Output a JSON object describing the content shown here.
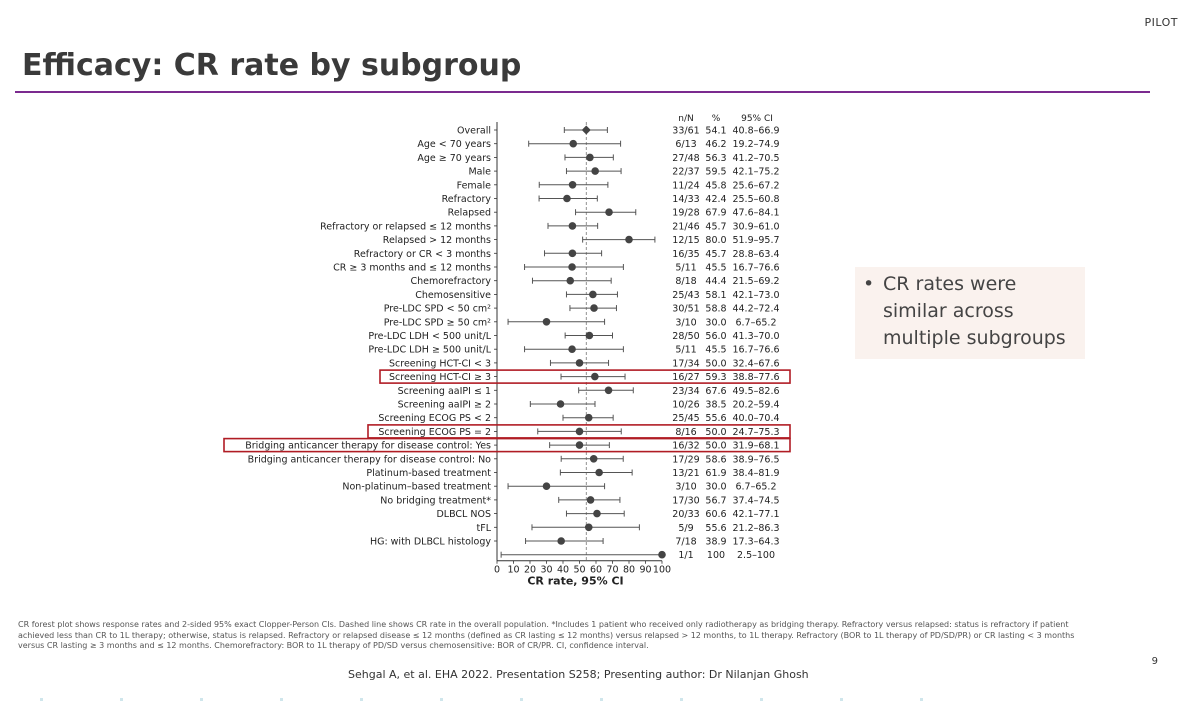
{
  "header": {
    "brand": "PILOT",
    "title": "Efficacy: CR rate by subgroup"
  },
  "table_headers": {
    "nn": "n/N",
    "pct": "%",
    "ci": "95% CI"
  },
  "bullet": {
    "text": "CR rates were similar across multiple subgroups"
  },
  "footnote": "CR forest plot shows response rates and 2-sided 95% exact Clopper-Person CIs. Dashed line shows CR rate in the overall population. *Includes 1 patient who received only radiotherapy as bridging therapy. Refractory versus relapsed: status is refractory if patient achieved less than CR to 1L therapy; otherwise, status is relapsed. Refractory or relapsed disease ≤ 12 months (defined as CR lasting ≤ 12 months) versus relapsed > 12 months, to 1L therapy. Refractory (BOR to 1L therapy of PD/SD/PR) or CR lasting < 3 months versus CR lasting ≥ 3 months and ≤ 12 months. Chemorefractory: BOR to 1L therapy of PD/SD versus chemosensitive: BOR of CR/PR. CI, confidence interval.",
  "citation": "Sehgal A, et al. EHA 2022. Presentation S258; Presenting author: Dr Nilanjan Ghosh",
  "page_number": "9",
  "chart_data": {
    "type": "forest",
    "xlabel": "CR rate, 95% CI",
    "xlim": [
      0,
      100
    ],
    "xticks": [
      0,
      10,
      20,
      30,
      40,
      50,
      60,
      70,
      80,
      90,
      100
    ],
    "reference_line": 54.1,
    "marker_color": "#444444",
    "highlight_color": "#b01c24",
    "rows": [
      {
        "label": "Overall",
        "nn": "33/61",
        "pct": 54.1,
        "lo": 40.8,
        "hi": 66.9,
        "pct_text": "54.1",
        "ci_text": "40.8–66.9",
        "highlight": false
      },
      {
        "label": "Age < 70 years",
        "nn": "6/13",
        "pct": 46.2,
        "lo": 19.2,
        "hi": 74.9,
        "pct_text": "46.2",
        "ci_text": "19.2–74.9",
        "highlight": false
      },
      {
        "label": "Age ≥ 70 years",
        "nn": "27/48",
        "pct": 56.3,
        "lo": 41.2,
        "hi": 70.5,
        "pct_text": "56.3",
        "ci_text": "41.2–70.5",
        "highlight": false
      },
      {
        "label": "Male",
        "nn": "22/37",
        "pct": 59.5,
        "lo": 42.1,
        "hi": 75.2,
        "pct_text": "59.5",
        "ci_text": "42.1–75.2",
        "highlight": false
      },
      {
        "label": "Female",
        "nn": "11/24",
        "pct": 45.8,
        "lo": 25.6,
        "hi": 67.2,
        "pct_text": "45.8",
        "ci_text": "25.6–67.2",
        "highlight": false
      },
      {
        "label": "Refractory",
        "nn": "14/33",
        "pct": 42.4,
        "lo": 25.5,
        "hi": 60.8,
        "pct_text": "42.4",
        "ci_text": "25.5–60.8",
        "highlight": false
      },
      {
        "label": "Relapsed",
        "nn": "19/28",
        "pct": 67.9,
        "lo": 47.6,
        "hi": 84.1,
        "pct_text": "67.9",
        "ci_text": "47.6–84.1",
        "highlight": false
      },
      {
        "label": "Refractory or relapsed ≤ 12 months",
        "nn": "21/46",
        "pct": 45.7,
        "lo": 30.9,
        "hi": 61.0,
        "pct_text": "45.7",
        "ci_text": "30.9–61.0",
        "highlight": false
      },
      {
        "label": "Relapsed > 12 months",
        "nn": "12/15",
        "pct": 80.0,
        "lo": 51.9,
        "hi": 95.7,
        "pct_text": "80.0",
        "ci_text": "51.9–95.7",
        "highlight": false
      },
      {
        "label": "Refractory or CR < 3 months",
        "nn": "16/35",
        "pct": 45.7,
        "lo": 28.8,
        "hi": 63.4,
        "pct_text": "45.7",
        "ci_text": "28.8–63.4",
        "highlight": false
      },
      {
        "label": "CR ≥ 3 months and ≤ 12 months",
        "nn": "5/11",
        "pct": 45.5,
        "lo": 16.7,
        "hi": 76.6,
        "pct_text": "45.5",
        "ci_text": "16.7–76.6",
        "highlight": false
      },
      {
        "label": "Chemorefractory",
        "nn": "8/18",
        "pct": 44.4,
        "lo": 21.5,
        "hi": 69.2,
        "pct_text": "44.4",
        "ci_text": "21.5–69.2",
        "highlight": false
      },
      {
        "label": "Chemosensitive",
        "nn": "25/43",
        "pct": 58.1,
        "lo": 42.1,
        "hi": 73.0,
        "pct_text": "58.1",
        "ci_text": "42.1–73.0",
        "highlight": false
      },
      {
        "label": "Pre-LDC SPD < 50 cm²",
        "nn": "30/51",
        "pct": 58.8,
        "lo": 44.2,
        "hi": 72.4,
        "pct_text": "58.8",
        "ci_text": "44.2–72.4",
        "highlight": false
      },
      {
        "label": "Pre-LDC SPD ≥ 50 cm²",
        "nn": "3/10",
        "pct": 30.0,
        "lo": 6.7,
        "hi": 65.2,
        "pct_text": "30.0",
        "ci_text": "6.7–65.2",
        "highlight": false
      },
      {
        "label": "Pre-LDC LDH < 500 unit/L",
        "nn": "28/50",
        "pct": 56.0,
        "lo": 41.3,
        "hi": 70.0,
        "pct_text": "56.0",
        "ci_text": "41.3–70.0",
        "highlight": false
      },
      {
        "label": "Pre-LDC LDH ≥ 500 unit/L",
        "nn": "5/11",
        "pct": 45.5,
        "lo": 16.7,
        "hi": 76.6,
        "pct_text": "45.5",
        "ci_text": "16.7–76.6",
        "highlight": false
      },
      {
        "label": "Screening HCT-CI < 3",
        "nn": "17/34",
        "pct": 50.0,
        "lo": 32.4,
        "hi": 67.6,
        "pct_text": "50.0",
        "ci_text": "32.4–67.6",
        "highlight": false
      },
      {
        "label": "Screening HCT-CI ≥ 3",
        "nn": "16/27",
        "pct": 59.3,
        "lo": 38.8,
        "hi": 77.6,
        "pct_text": "59.3",
        "ci_text": "38.8–77.6",
        "highlight": true
      },
      {
        "label": "Screening aaIPI ≤ 1",
        "nn": "23/34",
        "pct": 67.6,
        "lo": 49.5,
        "hi": 82.6,
        "pct_text": "67.6",
        "ci_text": "49.5–82.6",
        "highlight": false
      },
      {
        "label": "Screening aaIPI ≥ 2",
        "nn": "10/26",
        "pct": 38.5,
        "lo": 20.2,
        "hi": 59.4,
        "pct_text": "38.5",
        "ci_text": "20.2–59.4",
        "highlight": false
      },
      {
        "label": "Screening ECOG PS < 2",
        "nn": "25/45",
        "pct": 55.6,
        "lo": 40.0,
        "hi": 70.4,
        "pct_text": "55.6",
        "ci_text": "40.0–70.4",
        "highlight": false
      },
      {
        "label": "Screening ECOG PS = 2",
        "nn": "8/16",
        "pct": 50.0,
        "lo": 24.7,
        "hi": 75.3,
        "pct_text": "50.0",
        "ci_text": "24.7–75.3",
        "highlight": true
      },
      {
        "label": "Bridging anticancer therapy for disease control: Yes",
        "nn": "16/32",
        "pct": 50.0,
        "lo": 31.9,
        "hi": 68.1,
        "pct_text": "50.0",
        "ci_text": "31.9–68.1",
        "highlight": true
      },
      {
        "label": "Bridging anticancer therapy for disease control: No",
        "nn": "17/29",
        "pct": 58.6,
        "lo": 38.9,
        "hi": 76.5,
        "pct_text": "58.6",
        "ci_text": "38.9–76.5",
        "highlight": false
      },
      {
        "label": "Platinum-based treatment",
        "nn": "13/21",
        "pct": 61.9,
        "lo": 38.4,
        "hi": 81.9,
        "pct_text": "61.9",
        "ci_text": "38.4–81.9",
        "highlight": false
      },
      {
        "label": "Non-platinum–based treatment",
        "nn": "3/10",
        "pct": 30.0,
        "lo": 6.7,
        "hi": 65.2,
        "pct_text": "30.0",
        "ci_text": "6.7–65.2",
        "highlight": false
      },
      {
        "label": "No bridging treatment*",
        "nn": "17/30",
        "pct": 56.7,
        "lo": 37.4,
        "hi": 74.5,
        "pct_text": "56.7",
        "ci_text": "37.4–74.5",
        "highlight": false
      },
      {
        "label": "DLBCL NOS",
        "nn": "20/33",
        "pct": 60.6,
        "lo": 42.1,
        "hi": 77.1,
        "pct_text": "60.6",
        "ci_text": "42.1–77.1",
        "highlight": false
      },
      {
        "label": "tFL",
        "nn": "5/9",
        "pct": 55.6,
        "lo": 21.2,
        "hi": 86.3,
        "pct_text": "55.6",
        "ci_text": "21.2–86.3",
        "highlight": false
      },
      {
        "label": "HG: with DLBCL histology",
        "nn": "7/18",
        "pct": 38.9,
        "lo": 17.3,
        "hi": 64.3,
        "pct_text": "38.9",
        "ci_text": "17.3–64.3",
        "highlight": false
      },
      {
        "label": "",
        "nn": "1/1",
        "pct": 100,
        "lo": 2.5,
        "hi": 100,
        "pct_text": "100",
        "ci_text": "2.5–100",
        "highlight": false
      }
    ]
  }
}
